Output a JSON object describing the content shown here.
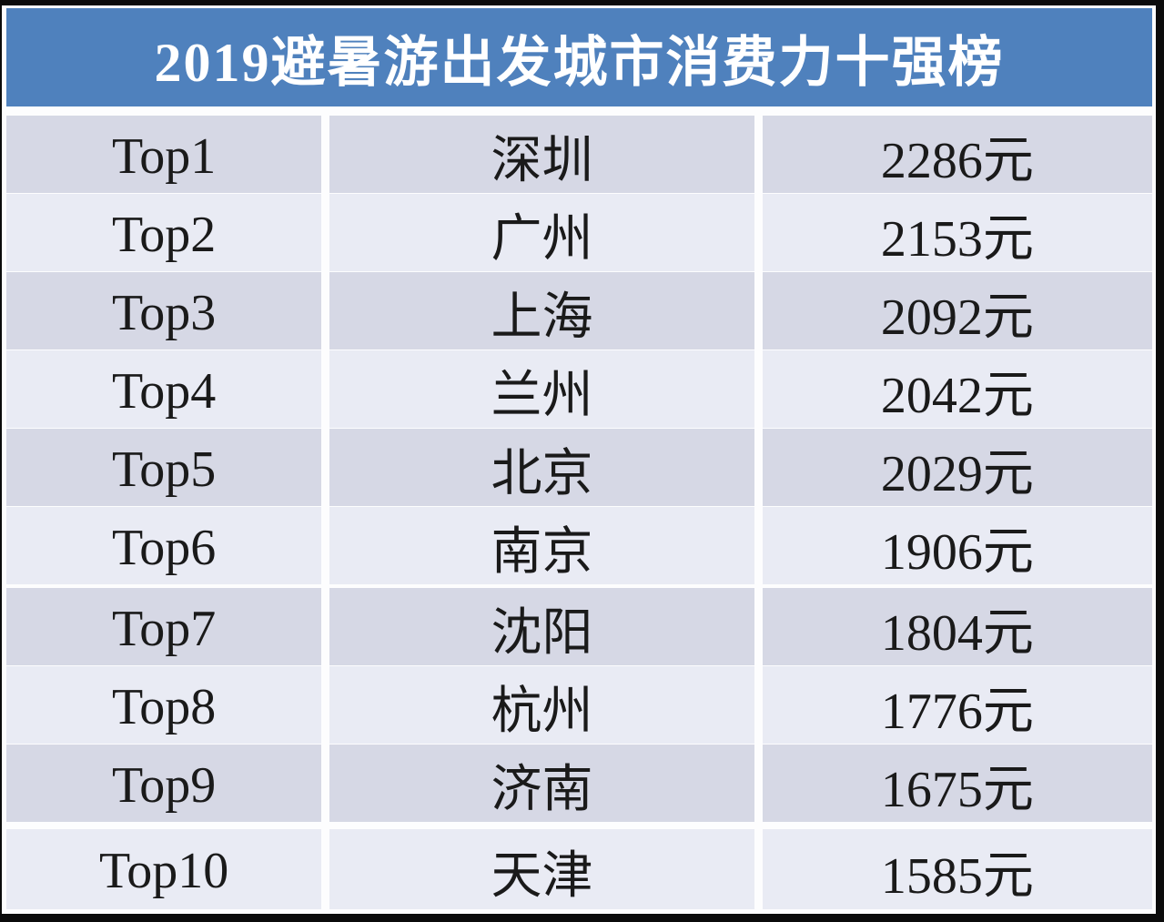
{
  "page": {
    "title": "2019避暑游出发城市消费力十强榜"
  },
  "colors": {
    "header_bg": "#4f81bd",
    "row_dark": "#d6d8e5",
    "row_light": "#e9ebf4",
    "gap_white": "#fdfdfe",
    "frame": "#0b0b0b",
    "text": "#1a1a1a",
    "title_text": "#ffffff"
  },
  "table": {
    "rows": [
      {
        "rank": "Top1",
        "city": "深圳",
        "price": "2286元"
      },
      {
        "rank": "Top2",
        "city": "广州",
        "price": "2153元"
      },
      {
        "rank": "Top3",
        "city": "上海",
        "price": "2092元"
      },
      {
        "rank": "Top4",
        "city": "兰州",
        "price": "2042元"
      },
      {
        "rank": "Top5",
        "city": "北京",
        "price": "2029元"
      },
      {
        "rank": "Top6",
        "city": "南京",
        "price": "1906元"
      },
      {
        "rank": "Top7",
        "city": "沈阳",
        "price": "1804元"
      },
      {
        "rank": "Top8",
        "city": "杭州",
        "price": "1776元"
      },
      {
        "rank": "Top9",
        "city": "济南",
        "price": "1675元"
      },
      {
        "rank": "Top10",
        "city": "天津",
        "price": "1585元"
      }
    ]
  },
  "chart_data": {
    "type": "table",
    "title": "2019避暑游出发城市消费力十强榜",
    "ranks": [
      "Top1",
      "Top2",
      "Top3",
      "Top4",
      "Top5",
      "Top6",
      "Top7",
      "Top8",
      "Top9",
      "Top10"
    ],
    "categories": [
      "深圳",
      "广州",
      "上海",
      "兰州",
      "北京",
      "南京",
      "沈阳",
      "杭州",
      "济南",
      "天津"
    ],
    "values": [
      2286,
      2153,
      2092,
      2042,
      2029,
      1906,
      1804,
      1776,
      1675,
      1585
    ],
    "unit": "元",
    "legend_position": "none",
    "grid": false
  }
}
